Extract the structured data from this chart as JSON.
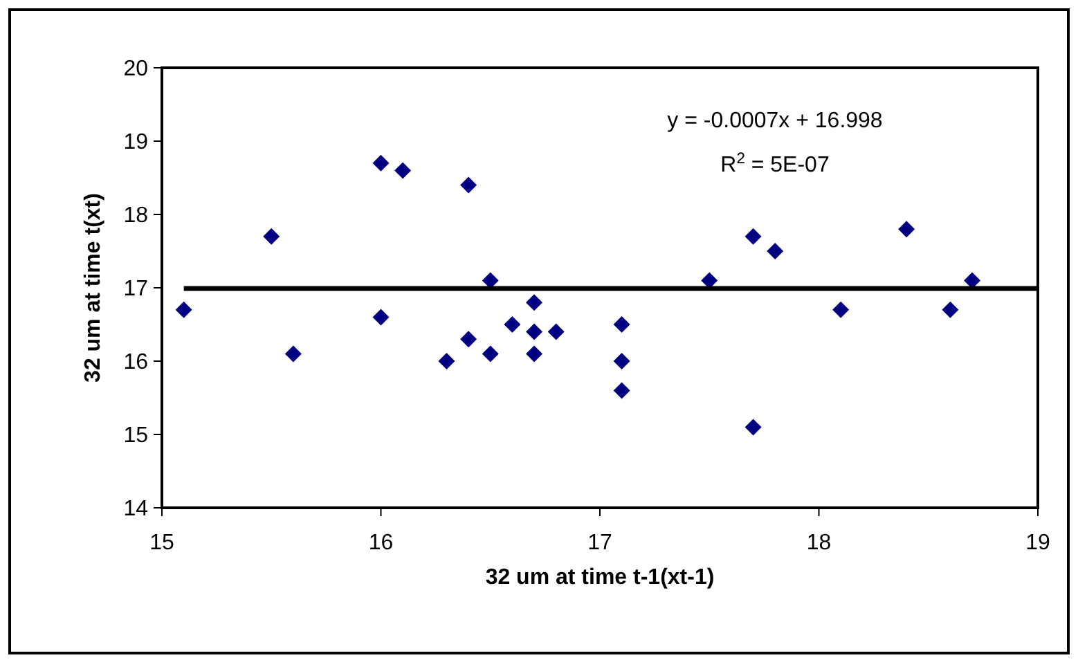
{
  "chart_data": {
    "type": "scatter",
    "xlabel": "32 um at time t-1(xt-1)",
    "ylabel": "32 um at time t(xt)",
    "xlim": [
      15,
      19
    ],
    "xticks": [
      15,
      16,
      17,
      18,
      19
    ],
    "ylim": [
      14,
      20
    ],
    "yticks": [
      14,
      15,
      16,
      17,
      18,
      19,
      20
    ],
    "grid": false,
    "marker": "diamond",
    "annotations": [
      "y = -0.0007x + 16.998",
      "R$^{2}$ = 5E-07"
    ],
    "series": [
      {
        "color": "#000080",
        "x": [
          15.1,
          15.5,
          15.6,
          16.0,
          16.0,
          16.1,
          16.3,
          16.4,
          16.4,
          16.5,
          16.5,
          16.6,
          16.7,
          16.7,
          16.7,
          16.8,
          17.1,
          17.1,
          17.1,
          17.5,
          17.7,
          17.7,
          17.8,
          18.1,
          18.4,
          18.6,
          18.7
        ],
        "values": [
          16.7,
          17.7,
          16.1,
          18.7,
          16.6,
          18.6,
          16.0,
          18.4,
          16.3,
          17.1,
          16.1,
          16.5,
          16.8,
          16.4,
          16.1,
          16.4,
          16.5,
          16.0,
          15.6,
          17.1,
          17.7,
          15.1,
          17.5,
          16.7,
          17.8,
          16.7,
          17.1
        ]
      },
      {
        "type": "line",
        "color": "#000000",
        "marker": "none",
        "x": [
          15.1,
          19
        ],
        "values": [
          16.99,
          16.99
        ]
      }
    ]
  }
}
